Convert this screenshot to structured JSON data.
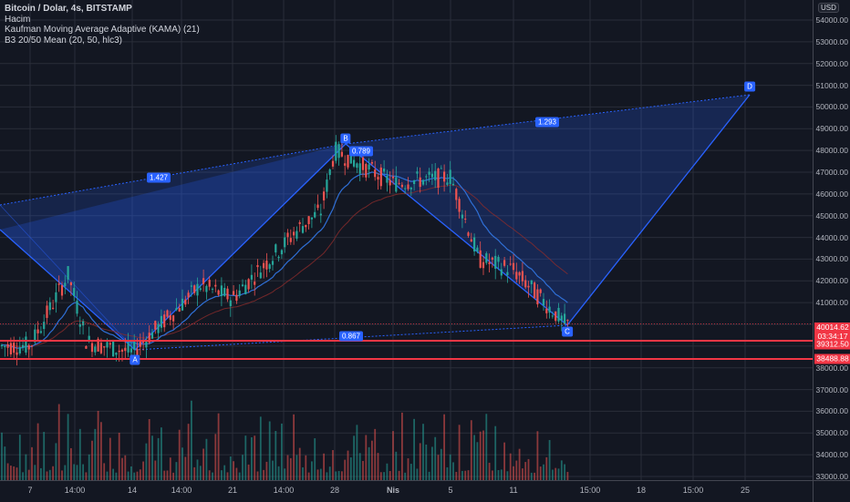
{
  "legend": {
    "title": "Bitcoin / Dolar, 4s, BITSTAMP",
    "volume": "Hacim",
    "kama": "Kaufman Moving Average Adaptive (KAMA) (21)",
    "b3": "B3 20/50 Mean (20, 50, hlc3)"
  },
  "price_axis": {
    "currency": "USD",
    "ticks": [
      "54000.00",
      "53000.00",
      "52000.00",
      "51000.00",
      "50000.00",
      "49000.00",
      "48000.00",
      "47000.00",
      "46000.00",
      "45000.00",
      "44000.00",
      "43000.00",
      "42000.00",
      "41000.00",
      "38000.00",
      "37000.00",
      "36000.00",
      "35000.00",
      "34000.00",
      "33000.00"
    ],
    "last_price": "40014.62",
    "countdown": "03:34:17",
    "line1": "39312.50",
    "line2": "38488.88"
  },
  "time_axis": {
    "ticks": [
      "7",
      "14:00",
      "14",
      "14:00",
      "21",
      "14:00",
      "28",
      "Nis",
      "5",
      "11",
      "15:00",
      "18",
      "15:00",
      "25"
    ]
  },
  "pattern_labels": {
    "a": "A",
    "b": "B",
    "c": "C",
    "d": "D",
    "xab": "1.427",
    "abc": "0.789",
    "bcd": "1.293",
    "xbd": "0.867"
  },
  "colors": {
    "background": "#131722",
    "up": "#26a69a",
    "down": "#ef5350",
    "pattern": "#2962ff",
    "hline": "#f23645"
  },
  "chart_data": {
    "type": "candlestick",
    "title": "Bitcoin / Dolar, 4s, BITSTAMP",
    "xlabel": "",
    "ylabel": "USD",
    "ylim": [
      32800,
      54600
    ],
    "x_ticks": [
      "7",
      "14:00",
      "14",
      "14:00",
      "21",
      "14:00",
      "28",
      "Nis",
      "5",
      "11",
      "15:00",
      "18",
      "15:00",
      "25"
    ],
    "y_ticks": [
      33000,
      34000,
      35000,
      36000,
      37000,
      38000,
      39000,
      40000,
      41000,
      42000,
      43000,
      44000,
      45000,
      46000,
      47000,
      48000,
      49000,
      50000,
      51000,
      52000,
      53000,
      54000
    ],
    "price_path_approx": [
      {
        "x": "7",
        "close": 39000
      },
      {
        "x": "10",
        "close": 42300
      },
      {
        "x": "11",
        "close": 39200
      },
      {
        "x": "14",
        "close": 38700
      },
      {
        "x": "17",
        "close": 41800
      },
      {
        "x": "21",
        "close": 41200
      },
      {
        "x": "24",
        "close": 44500
      },
      {
        "x": "27",
        "close": 45200
      },
      {
        "x": "28",
        "close": 48000
      },
      {
        "x": "Nis",
        "close": 46500
      },
      {
        "x": "5",
        "close": 46800
      },
      {
        "x": "7",
        "close": 43000
      },
      {
        "x": "10",
        "close": 42500
      },
      {
        "x": "11",
        "close": 40014.62
      }
    ],
    "harmonic_pattern": {
      "X": 45600,
      "A": 38300,
      "B": 48200,
      "C": 39900,
      "D": 50600,
      "ratios": {
        "XAB": 1.427,
        "ABC": 0.789,
        "BCD": 1.293,
        "XBD": 0.867
      }
    },
    "horizontal_lines": [
      39312.5,
      38488.88
    ],
    "last_price": 40014.62,
    "indicators": [
      "Hacim",
      "KAMA (21)",
      "B3 20/50 Mean (20, 50, hlc3)"
    ],
    "grid": true,
    "legend_position": "top-left"
  }
}
